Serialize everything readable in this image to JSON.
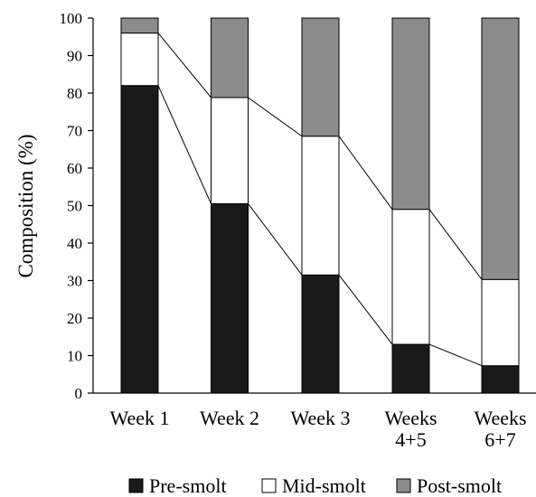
{
  "chart_data": {
    "type": "bar",
    "stacked": true,
    "categories": [
      [
        "Week 1"
      ],
      [
        "Week 2"
      ],
      [
        "Week 3"
      ],
      [
        "Weeks",
        "4+5"
      ],
      [
        "Weeks",
        "6+7"
      ]
    ],
    "series": [
      {
        "name": "Pre-smolt",
        "values": [
          82,
          50.5,
          31.5,
          13,
          7.3
        ],
        "color": "#1a1a1a"
      },
      {
        "name": "Mid-smolt",
        "values": [
          14,
          28.3,
          37,
          36,
          23
        ],
        "color": "#ffffff"
      },
      {
        "name": "Post-smolt",
        "values": [
          4,
          21.2,
          31.5,
          51,
          69.7
        ],
        "color": "#8c8c8c"
      }
    ],
    "ylabel": "Composition (%)",
    "xlabel": "",
    "ylim": [
      0,
      100
    ],
    "yticks": [
      0,
      10,
      20,
      30,
      40,
      50,
      60,
      70,
      80,
      90,
      100
    ],
    "grid": false,
    "connector_lines": true,
    "legend_position": "bottom"
  }
}
